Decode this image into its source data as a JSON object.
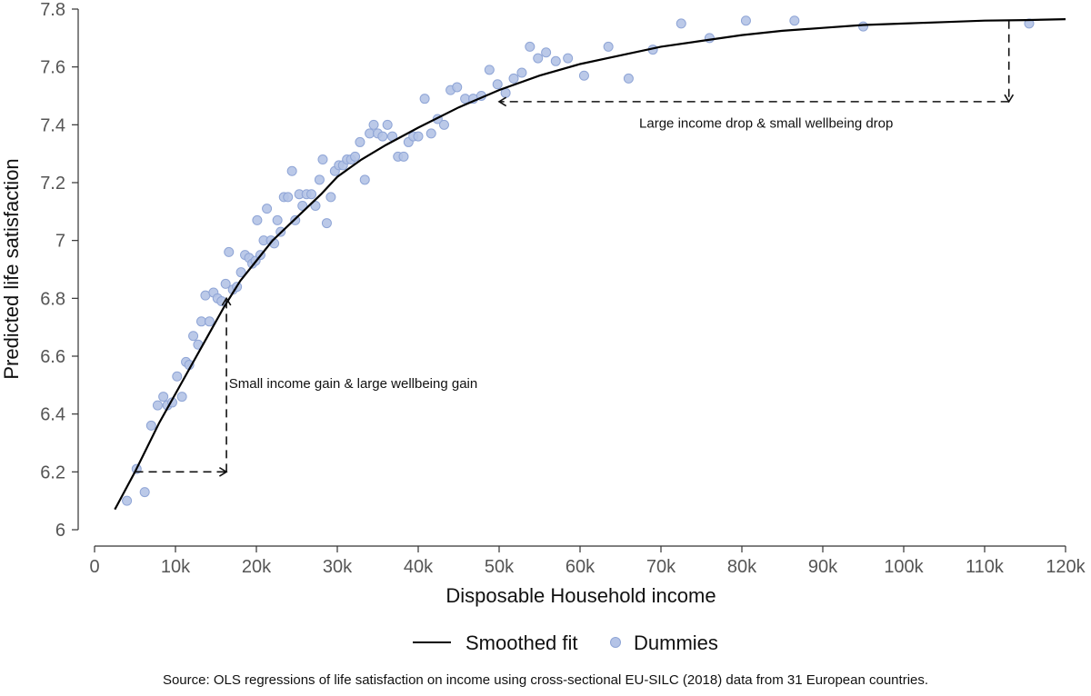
{
  "chart_data": {
    "type": "scatter",
    "xlabel": "Disposable Household income",
    "ylabel": "Predicted life satisfaction",
    "xlim": [
      0,
      120000
    ],
    "ylim": [
      6,
      7.8
    ],
    "x_ticks": [
      0,
      10000,
      20000,
      30000,
      40000,
      50000,
      60000,
      70000,
      80000,
      90000,
      100000,
      110000,
      120000
    ],
    "x_tick_labels": [
      "0",
      "10k",
      "20k",
      "30k",
      "40k",
      "50k",
      "60k",
      "70k",
      "80k",
      "90k",
      "100k",
      "110k",
      "120k"
    ],
    "y_ticks": [
      6,
      6.2,
      6.4,
      6.6,
      6.8,
      7,
      7.2,
      7.4,
      7.6,
      7.8
    ],
    "y_tick_labels": [
      "6",
      "6.2",
      "6.4",
      "6.6",
      "6.8",
      "7",
      "7.2",
      "7.4",
      "7.6",
      "7.8"
    ],
    "grid": false,
    "legend_position": "bottom",
    "series": [
      {
        "name": "Smoothed fit",
        "type": "line",
        "color": "#000000",
        "points": [
          [
            2500,
            6.07
          ],
          [
            5000,
            6.2
          ],
          [
            8000,
            6.37
          ],
          [
            10000,
            6.47
          ],
          [
            12000,
            6.57
          ],
          [
            14000,
            6.67
          ],
          [
            16000,
            6.77
          ],
          [
            18000,
            6.86
          ],
          [
            20000,
            6.93
          ],
          [
            22000,
            7.0
          ],
          [
            25000,
            7.08
          ],
          [
            28000,
            7.16
          ],
          [
            30000,
            7.22
          ],
          [
            33000,
            7.28
          ],
          [
            36000,
            7.33
          ],
          [
            40000,
            7.39
          ],
          [
            45000,
            7.46
          ],
          [
            50000,
            7.52
          ],
          [
            55000,
            7.57
          ],
          [
            60000,
            7.61
          ],
          [
            65000,
            7.64
          ],
          [
            70000,
            7.67
          ],
          [
            75000,
            7.69
          ],
          [
            80000,
            7.71
          ],
          [
            85000,
            7.725
          ],
          [
            90000,
            7.735
          ],
          [
            95000,
            7.745
          ],
          [
            100000,
            7.75
          ],
          [
            105000,
            7.755
          ],
          [
            110000,
            7.76
          ],
          [
            115000,
            7.762
          ],
          [
            120000,
            7.765
          ]
        ]
      },
      {
        "name": "Dummies",
        "type": "scatter",
        "color": "#b4c3e6",
        "stroke": "#8fa5d6",
        "points": [
          [
            4000,
            6.1
          ],
          [
            5200,
            6.21
          ],
          [
            6200,
            6.13
          ],
          [
            7000,
            6.36
          ],
          [
            7800,
            6.43
          ],
          [
            8500,
            6.46
          ],
          [
            9000,
            6.43
          ],
          [
            9600,
            6.44
          ],
          [
            10200,
            6.53
          ],
          [
            10800,
            6.46
          ],
          [
            11300,
            6.58
          ],
          [
            11700,
            6.57
          ],
          [
            12200,
            6.67
          ],
          [
            12800,
            6.64
          ],
          [
            13200,
            6.72
          ],
          [
            13700,
            6.81
          ],
          [
            14200,
            6.72
          ],
          [
            14700,
            6.82
          ],
          [
            15200,
            6.8
          ],
          [
            15700,
            6.79
          ],
          [
            16200,
            6.85
          ],
          [
            16600,
            6.96
          ],
          [
            17100,
            6.83
          ],
          [
            17600,
            6.84
          ],
          [
            18100,
            6.89
          ],
          [
            18600,
            6.95
          ],
          [
            19100,
            6.94
          ],
          [
            19500,
            6.92
          ],
          [
            19900,
            6.93
          ],
          [
            20100,
            7.07
          ],
          [
            20500,
            6.95
          ],
          [
            20900,
            7.0
          ],
          [
            21300,
            7.11
          ],
          [
            21800,
            7.0
          ],
          [
            22200,
            6.99
          ],
          [
            22600,
            7.07
          ],
          [
            23000,
            7.03
          ],
          [
            23400,
            7.15
          ],
          [
            23900,
            7.15
          ],
          [
            24400,
            7.24
          ],
          [
            24800,
            7.07
          ],
          [
            25300,
            7.16
          ],
          [
            25700,
            7.12
          ],
          [
            26200,
            7.16
          ],
          [
            26800,
            7.16
          ],
          [
            27300,
            7.12
          ],
          [
            27800,
            7.21
          ],
          [
            28200,
            7.28
          ],
          [
            28700,
            7.06
          ],
          [
            29200,
            7.15
          ],
          [
            29700,
            7.24
          ],
          [
            30200,
            7.26
          ],
          [
            30700,
            7.26
          ],
          [
            31200,
            7.28
          ],
          [
            31700,
            7.28
          ],
          [
            32200,
            7.29
          ],
          [
            32800,
            7.34
          ],
          [
            33400,
            7.21
          ],
          [
            34000,
            7.37
          ],
          [
            34500,
            7.4
          ],
          [
            35000,
            7.37
          ],
          [
            35600,
            7.36
          ],
          [
            36200,
            7.4
          ],
          [
            36800,
            7.36
          ],
          [
            37500,
            7.29
          ],
          [
            38200,
            7.29
          ],
          [
            38800,
            7.34
          ],
          [
            39400,
            7.36
          ],
          [
            40000,
            7.36
          ],
          [
            40800,
            7.49
          ],
          [
            41600,
            7.37
          ],
          [
            42400,
            7.42
          ],
          [
            43200,
            7.4
          ],
          [
            44000,
            7.52
          ],
          [
            44800,
            7.53
          ],
          [
            45800,
            7.49
          ],
          [
            46800,
            7.49
          ],
          [
            47800,
            7.5
          ],
          [
            48800,
            7.59
          ],
          [
            49800,
            7.54
          ],
          [
            50800,
            7.51
          ],
          [
            51800,
            7.56
          ],
          [
            52800,
            7.58
          ],
          [
            53800,
            7.67
          ],
          [
            54800,
            7.63
          ],
          [
            55800,
            7.65
          ],
          [
            57000,
            7.62
          ],
          [
            58500,
            7.63
          ],
          [
            60500,
            7.57
          ],
          [
            63500,
            7.67
          ],
          [
            66000,
            7.56
          ],
          [
            69000,
            7.66
          ],
          [
            72500,
            7.75
          ],
          [
            76000,
            7.7
          ],
          [
            80500,
            7.76
          ],
          [
            86500,
            7.76
          ],
          [
            95000,
            7.74
          ],
          [
            115500,
            7.75
          ]
        ]
      }
    ],
    "annotations": [
      {
        "text": "Small income gain & large wellbeing gain",
        "arrow_horizontal": {
          "from": [
            5000,
            6.2
          ],
          "to": [
            16300,
            6.2
          ]
        },
        "arrow_vertical": {
          "from": [
            16300,
            6.2
          ],
          "to": [
            16300,
            6.8
          ]
        }
      },
      {
        "text": "Large income drop & small wellbeing drop",
        "arrow_vertical": {
          "from": [
            113000,
            7.76
          ],
          "to": [
            113000,
            7.48
          ]
        },
        "arrow_horizontal": {
          "from": [
            113000,
            7.48
          ],
          "to": [
            50000,
            7.48
          ]
        }
      }
    ]
  },
  "caption": "Source: OLS regressions of life satisfaction on income using cross-sectional EU-SILC (2018) data from 31 European countries."
}
